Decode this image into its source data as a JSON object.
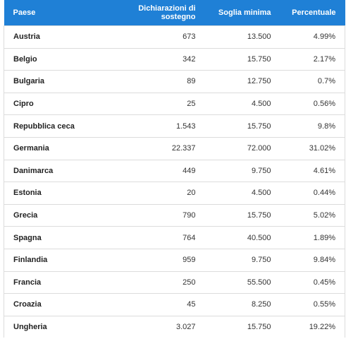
{
  "table": {
    "header": [
      "Paese",
      "Dichiarazioni di sostegno",
      "Soglia minima",
      "Percentuale"
    ],
    "rows": [
      [
        "Austria",
        "673",
        "13.500",
        "4.99%"
      ],
      [
        "Belgio",
        "342",
        "15.750",
        "2.17%"
      ],
      [
        "Bulgaria",
        "89",
        "12.750",
        "0.7%"
      ],
      [
        "Cipro",
        "25",
        "4.500",
        "0.56%"
      ],
      [
        "Repubblica ceca",
        "1.543",
        "15.750",
        "9.8%"
      ],
      [
        "Germania",
        "22.337",
        "72.000",
        "31.02%"
      ],
      [
        "Danimarca",
        "449",
        "9.750",
        "4.61%"
      ],
      [
        "Estonia",
        "20",
        "4.500",
        "0.44%"
      ],
      [
        "Grecia",
        "790",
        "15.750",
        "5.02%"
      ],
      [
        "Spagna",
        "764",
        "40.500",
        "1.89%"
      ],
      [
        "Finlandia",
        "959",
        "9.750",
        "9.84%"
      ],
      [
        "Francia",
        "250",
        "55.500",
        "0.45%"
      ],
      [
        "Croazia",
        "45",
        "8.250",
        "0.55%"
      ],
      [
        "Ungheria",
        "3.027",
        "15.750",
        "19.22%"
      ]
    ]
  }
}
